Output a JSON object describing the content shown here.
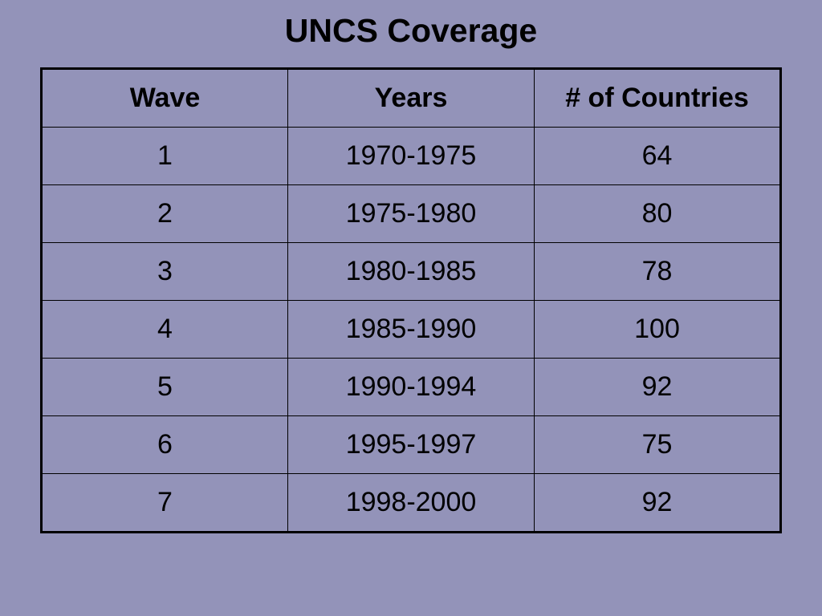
{
  "header": {
    "title": "UNCS Coverage"
  },
  "table": {
    "columns": [
      "Wave",
      "Years",
      "# of Countries"
    ],
    "rows": [
      [
        1,
        "1970-1975",
        64
      ],
      [
        2,
        "1975-1980",
        80
      ],
      [
        3,
        "1980-1985",
        78
      ],
      [
        4,
        "1985-1990",
        100
      ],
      [
        5,
        "1990-1994",
        92
      ],
      [
        6,
        "1995-1997",
        75
      ],
      [
        7,
        "1998-2000",
        92
      ]
    ]
  }
}
